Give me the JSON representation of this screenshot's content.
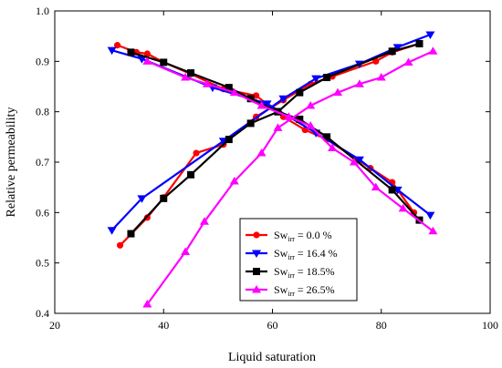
{
  "chart_data": {
    "type": "line",
    "title": "",
    "xlabel": "Liquid saturation",
    "ylabel": "Relative permeability",
    "xlim": [
      20,
      100
    ],
    "ylim": [
      0.4,
      1.0
    ],
    "xticks": [
      "20",
      "40",
      "60",
      "80",
      "100"
    ],
    "yticks": [
      "0.4",
      "0.5",
      "0.6",
      "0.7",
      "0.8",
      "0.9",
      "1.0"
    ],
    "grid": false,
    "legend_position": "center-right",
    "series": [
      {
        "name": "Sw",
        "name_sub": "irr",
        "name_rest": "= 0.0 %",
        "color": "#ff0000",
        "marker": "circle",
        "rising": [
          [
            32,
            0.535
          ],
          [
            37,
            0.59
          ],
          [
            40,
            0.63
          ],
          [
            46,
            0.718
          ],
          [
            51,
            0.735
          ],
          [
            57,
            0.79
          ],
          [
            62,
            0.823
          ],
          [
            67,
            0.855
          ],
          [
            71,
            0.87
          ],
          [
            79,
            0.9
          ],
          [
            82,
            0.918
          ],
          [
            87,
            0.935
          ]
        ],
        "falling": [
          [
            31.5,
            0.932
          ],
          [
            35,
            0.918
          ],
          [
            37,
            0.915
          ],
          [
            40,
            0.898
          ],
          [
            45,
            0.875
          ],
          [
            51,
            0.845
          ],
          [
            57,
            0.832
          ],
          [
            62,
            0.79
          ],
          [
            66,
            0.764
          ],
          [
            70,
            0.745
          ],
          [
            78,
            0.688
          ],
          [
            82,
            0.66
          ],
          [
            86,
            0.6
          ]
        ]
      },
      {
        "name": "Sw",
        "name_sub": "irr",
        "name_rest": "= 16.4 %",
        "color": "#0000ff",
        "marker": "triangle-down",
        "rising": [
          [
            30.5,
            0.565
          ],
          [
            36,
            0.628
          ],
          [
            51,
            0.742
          ],
          [
            62,
            0.826
          ],
          [
            68,
            0.866
          ],
          [
            76,
            0.895
          ],
          [
            83,
            0.928
          ],
          [
            89,
            0.953
          ]
        ],
        "falling": [
          [
            30.5,
            0.922
          ],
          [
            36,
            0.905
          ],
          [
            49,
            0.848
          ],
          [
            59,
            0.816
          ],
          [
            68,
            0.758
          ],
          [
            76,
            0.705
          ],
          [
            83,
            0.645
          ],
          [
            89,
            0.595
          ]
        ]
      },
      {
        "name": "Sw",
        "name_sub": "irr",
        "name_rest": "= 18.5%",
        "color": "#000000",
        "marker": "square",
        "rising": [
          [
            34,
            0.558
          ],
          [
            40,
            0.628
          ],
          [
            45,
            0.675
          ],
          [
            52,
            0.745
          ],
          [
            56,
            0.777
          ],
          [
            61,
            0.8
          ],
          [
            65,
            0.838
          ],
          [
            70,
            0.868
          ],
          [
            82,
            0.92
          ],
          [
            87,
            0.935
          ]
        ],
        "falling": [
          [
            34,
            0.918
          ],
          [
            40,
            0.898
          ],
          [
            45,
            0.877
          ],
          [
            52,
            0.848
          ],
          [
            56,
            0.826
          ],
          [
            61,
            0.8
          ],
          [
            65,
            0.785
          ],
          [
            70,
            0.75
          ],
          [
            82,
            0.645
          ],
          [
            87,
            0.585
          ]
        ]
      },
      {
        "name": "Sw",
        "name_sub": "irr",
        "name_rest": "= 26.5%",
        "color": "#ff00ff",
        "marker": "triangle-up",
        "rising": [
          [
            37,
            0.418
          ],
          [
            44,
            0.522
          ],
          [
            47.5,
            0.582
          ],
          [
            53,
            0.662
          ],
          [
            58,
            0.718
          ],
          [
            61,
            0.768
          ],
          [
            67,
            0.812
          ],
          [
            72,
            0.838
          ],
          [
            76,
            0.855
          ],
          [
            80,
            0.868
          ],
          [
            85,
            0.898
          ],
          [
            89.5,
            0.92
          ]
        ],
        "falling": [
          [
            37,
            0.9
          ],
          [
            44,
            0.868
          ],
          [
            48,
            0.855
          ],
          [
            53,
            0.838
          ],
          [
            58,
            0.812
          ],
          [
            63,
            0.79
          ],
          [
            67,
            0.772
          ],
          [
            71,
            0.728
          ],
          [
            75,
            0.7
          ],
          [
            79,
            0.65
          ],
          [
            84,
            0.608
          ],
          [
            89.5,
            0.563
          ]
        ]
      }
    ]
  }
}
